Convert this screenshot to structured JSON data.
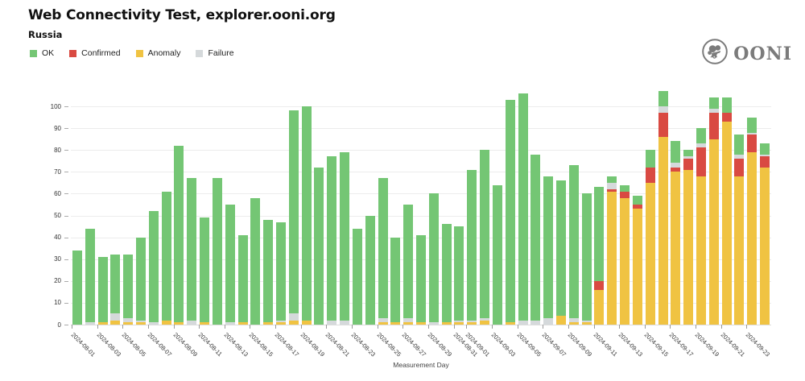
{
  "header": {
    "title": "Web Connectivity Test, explorer.ooni.org",
    "subtitle": "Russia"
  },
  "logo": {
    "icon": "ooni-octopus-circle-icon",
    "text": "OONI",
    "color": "#7b7b7b"
  },
  "legend": [
    {
      "label": "OK",
      "color": "#74c674"
    },
    {
      "label": "Confirmed",
      "color": "#d94a42"
    },
    {
      "label": "Anomaly",
      "color": "#f0c342"
    },
    {
      "label": "Failure",
      "color": "#d5d9db"
    }
  ],
  "chart_data": {
    "type": "bar",
    "stacked": true,
    "title": "Web Connectivity Test, explorer.ooni.org",
    "subtitle": "Russia",
    "xlabel": "Measurement Day",
    "ylabel": "",
    "ylim": [
      0,
      107
    ],
    "yticks": [
      0,
      10,
      20,
      30,
      40,
      50,
      60,
      70,
      80,
      90,
      100
    ],
    "grid": "horizontal",
    "legend_position": "top-left",
    "stack_order_bottom_to_top": [
      "Anomaly",
      "Confirmed",
      "Failure",
      "OK"
    ],
    "x": [
      "2024-08-01",
      "2024-08-02",
      "2024-08-03",
      "2024-08-04",
      "2024-08-05",
      "2024-08-06",
      "2024-08-07",
      "2024-08-08",
      "2024-08-09",
      "2024-08-10",
      "2024-08-11",
      "2024-08-12",
      "2024-08-13",
      "2024-08-14",
      "2024-08-15",
      "2024-08-16",
      "2024-08-17",
      "2024-08-18",
      "2024-08-19",
      "2024-08-20",
      "2024-08-21",
      "2024-08-22",
      "2024-08-23",
      "2024-08-24",
      "2024-08-25",
      "2024-08-26",
      "2024-08-27",
      "2024-08-28",
      "2024-08-29",
      "2024-08-30",
      "2024-08-31",
      "2024-09-01",
      "2024-09-02",
      "2024-09-03",
      "2024-09-04",
      "2024-09-05",
      "2024-09-06",
      "2024-09-07",
      "2024-09-08",
      "2024-09-09",
      "2024-09-10",
      "2024-09-11",
      "2024-09-12",
      "2024-09-13",
      "2024-09-14",
      "2024-09-15",
      "2024-09-16",
      "2024-09-17",
      "2024-09-18",
      "2024-09-19",
      "2024-09-20",
      "2024-09-21",
      "2024-09-22",
      "2024-09-23",
      "2024-09-24"
    ],
    "x_tick_labels": [
      "2024-08-01",
      "2024-08-03",
      "2024-08-05",
      "2024-08-07",
      "2024-08-09",
      "2024-08-11",
      "2024-08-13",
      "2024-08-15",
      "2024-08-17",
      "2024-08-19",
      "2024-08-21",
      "2024-08-23",
      "2024-08-25",
      "2024-08-27",
      "2024-08-29",
      "2024-08-31",
      "2024-09-01",
      "2024-09-03",
      "2024-09-05",
      "2024-09-07",
      "2024-09-09",
      "2024-09-11",
      "2024-09-13",
      "2024-09-15",
      "2024-09-17",
      "2024-09-19",
      "2024-09-21",
      "2024-09-23"
    ],
    "series": [
      {
        "name": "OK",
        "values": [
          34,
          43,
          30,
          27,
          29,
          38,
          51,
          59,
          81,
          65,
          48,
          67,
          54,
          40,
          58,
          47,
          45,
          93,
          98,
          72,
          75,
          77,
          44,
          50,
          64,
          39,
          52,
          40,
          59,
          45,
          43,
          69,
          77,
          64,
          102,
          104,
          76,
          65,
          62,
          70,
          58,
          43,
          3,
          3,
          4,
          8,
          7,
          10,
          3,
          7,
          5,
          7,
          9,
          7,
          5
        ]
      },
      {
        "name": "Confirmed",
        "values": [
          0,
          0,
          0,
          0,
          0,
          0,
          0,
          0,
          0,
          0,
          0,
          0,
          0,
          0,
          0,
          0,
          0,
          0,
          0,
          0,
          0,
          0,
          0,
          0,
          0,
          0,
          0,
          0,
          0,
          0,
          0,
          0,
          0,
          0,
          0,
          0,
          0,
          0,
          0,
          0,
          0,
          4,
          1,
          3,
          2,
          7,
          11,
          2,
          5,
          13,
          12,
          4,
          8,
          8,
          5
        ]
      },
      {
        "name": "Anomaly",
        "values": [
          0,
          0,
          1,
          2,
          1,
          1,
          0,
          2,
          1,
          0,
          1,
          0,
          0,
          1,
          0,
          1,
          1,
          2,
          2,
          0,
          0,
          0,
          0,
          0,
          1,
          1,
          1,
          1,
          0,
          1,
          1,
          1,
          2,
          0,
          1,
          0,
          0,
          0,
          4,
          1,
          1,
          16,
          61,
          58,
          53,
          65,
          86,
          70,
          71,
          68,
          85,
          93,
          68,
          79,
          72
        ]
      },
      {
        "name": "Failure",
        "values": [
          0,
          1,
          0,
          3,
          2,
          1,
          1,
          0,
          0,
          2,
          0,
          0,
          1,
          0,
          0,
          0,
          1,
          3,
          0,
          0,
          2,
          2,
          0,
          0,
          2,
          0,
          2,
          0,
          1,
          0,
          1,
          1,
          1,
          0,
          0,
          2,
          2,
          3,
          0,
          2,
          1,
          0,
          3,
          0,
          0,
          0,
          3,
          2,
          1,
          2,
          2,
          0,
          2,
          1,
          1
        ]
      }
    ]
  }
}
